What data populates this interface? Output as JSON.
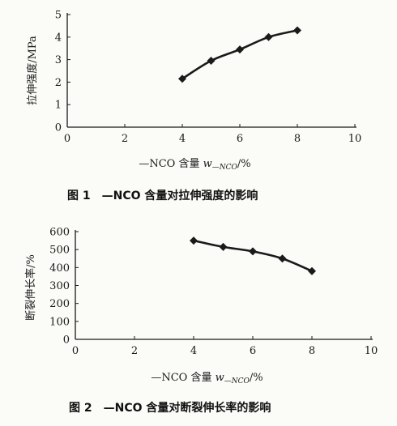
{
  "chart_data": [
    {
      "type": "line",
      "caption": "图 1　—NCO 含量对拉伸强度的影响",
      "xlabel_text": "—NCO 含量 ",
      "xlabel_var": "w",
      "xlabel_sub": "—NCO",
      "xlabel_unit": "/%",
      "ylabel": "拉伸强度/MPa",
      "xlim": [
        0,
        10
      ],
      "ylim": [
        0,
        5
      ],
      "xticks": [
        0,
        2,
        4,
        6,
        8,
        10
      ],
      "yticks": [
        0,
        1,
        2,
        3,
        4,
        5
      ],
      "grid": false,
      "series": [
        {
          "x": [
            4,
            5,
            6,
            7,
            8
          ],
          "y": [
            2.15,
            2.95,
            3.45,
            4.0,
            4.3
          ]
        }
      ]
    },
    {
      "type": "line",
      "caption": "图 2　—NCO 含量对断裂伸长率的影响",
      "xlabel_text": "—NCO 含量 ",
      "xlabel_var": "w",
      "xlabel_sub": "—NCO",
      "xlabel_unit": "/%",
      "ylabel": "断裂伸长率/%",
      "xlim": [
        0,
        10
      ],
      "ylim": [
        0,
        600
      ],
      "xticks": [
        0,
        2,
        4,
        6,
        8,
        10
      ],
      "yticks": [
        0,
        100,
        200,
        300,
        400,
        500,
        600
      ],
      "grid": false,
      "series": [
        {
          "x": [
            4,
            5,
            6,
            7,
            8
          ],
          "y": [
            550,
            515,
            490,
            450,
            380
          ]
        }
      ]
    }
  ],
  "colors": {
    "ink": "#1a1a1a",
    "background": "#fbfbf8"
  }
}
